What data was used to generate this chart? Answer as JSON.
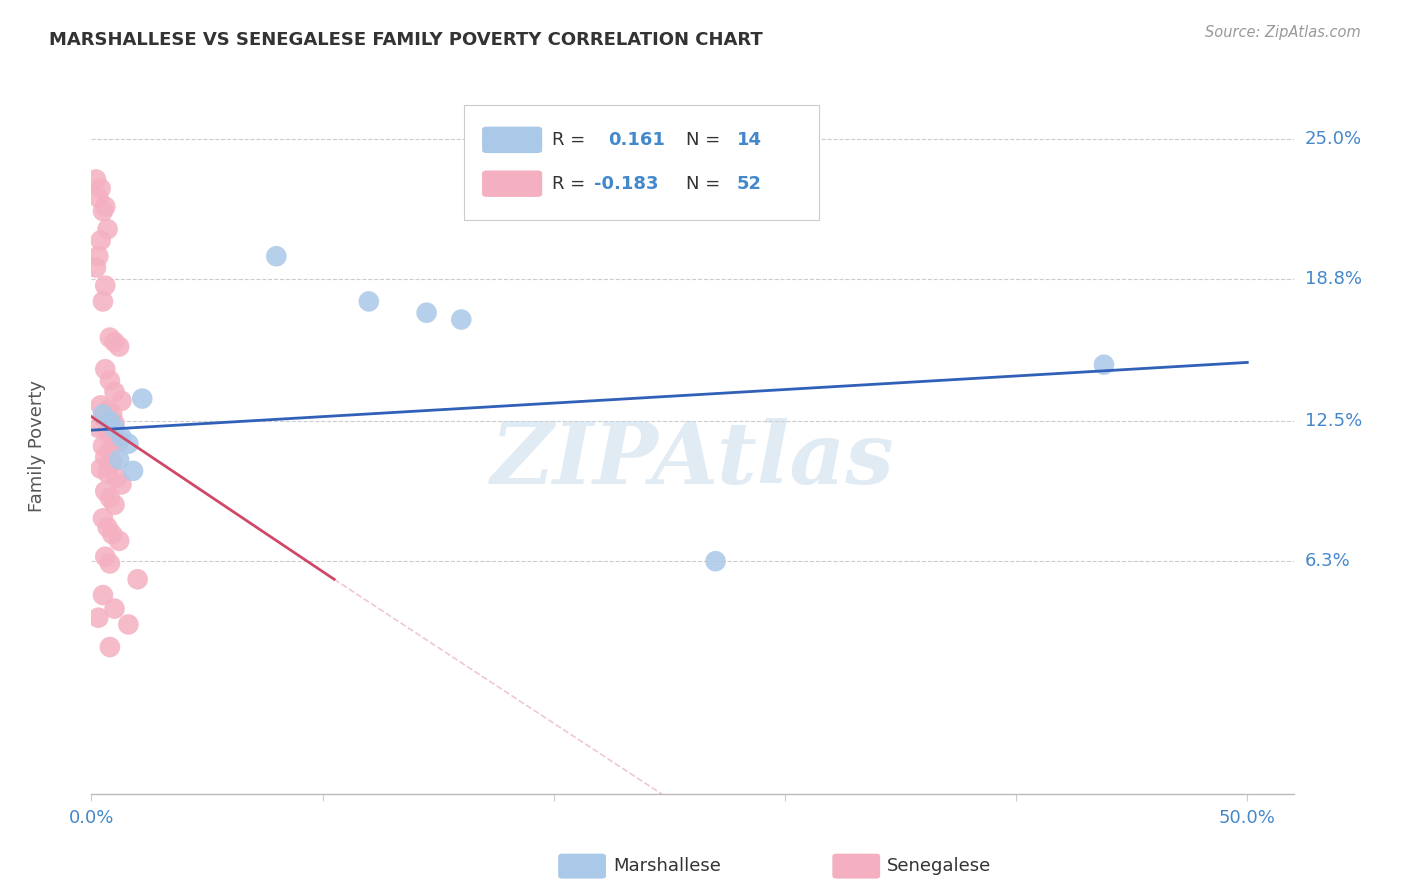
{
  "title": "MARSHALLESE VS SENEGALESE FAMILY POVERTY CORRELATION CHART",
  "source": "Source: ZipAtlas.com",
  "ylabel": "Family Poverty",
  "xlim": [
    0.0,
    0.52
  ],
  "ylim": [
    -0.04,
    0.268
  ],
  "watermark": "ZIPAtlas",
  "legend_blue_R": "R =  0.161",
  "legend_blue_N": "N = 14",
  "legend_pink_R": "R = -0.183",
  "legend_pink_N": "N = 52",
  "blue_color": "#aac8e8",
  "pink_color": "#f4b0c0",
  "blue_line_color": "#3060b8",
  "pink_line_color": "#d04868",
  "ytick_vals": [
    0.063,
    0.125,
    0.188,
    0.25
  ],
  "ytick_labels": [
    "6.3%",
    "12.5%",
    "18.8%",
    "25.0%"
  ],
  "blue_scatter": [
    [
      0.005,
      0.128
    ],
    [
      0.008,
      0.125
    ],
    [
      0.01,
      0.122
    ],
    [
      0.013,
      0.118
    ],
    [
      0.016,
      0.115
    ],
    [
      0.012,
      0.108
    ],
    [
      0.018,
      0.103
    ],
    [
      0.022,
      0.135
    ],
    [
      0.08,
      0.198
    ],
    [
      0.12,
      0.178
    ],
    [
      0.145,
      0.173
    ],
    [
      0.16,
      0.17
    ],
    [
      0.27,
      0.063
    ],
    [
      0.438,
      0.15
    ]
  ],
  "pink_scatter": [
    [
      0.002,
      0.232
    ],
    [
      0.004,
      0.228
    ],
    [
      0.003,
      0.224
    ],
    [
      0.006,
      0.22
    ],
    [
      0.005,
      0.218
    ],
    [
      0.007,
      0.21
    ],
    [
      0.004,
      0.205
    ],
    [
      0.003,
      0.198
    ],
    [
      0.002,
      0.193
    ],
    [
      0.006,
      0.185
    ],
    [
      0.005,
      0.178
    ],
    [
      0.008,
      0.162
    ],
    [
      0.01,
      0.16
    ],
    [
      0.012,
      0.158
    ],
    [
      0.006,
      0.148
    ],
    [
      0.008,
      0.143
    ],
    [
      0.01,
      0.138
    ],
    [
      0.013,
      0.134
    ],
    [
      0.004,
      0.132
    ],
    [
      0.007,
      0.13
    ],
    [
      0.009,
      0.128
    ],
    [
      0.005,
      0.127
    ],
    [
      0.006,
      0.126
    ],
    [
      0.008,
      0.125
    ],
    [
      0.01,
      0.124
    ],
    [
      0.003,
      0.122
    ],
    [
      0.007,
      0.12
    ],
    [
      0.009,
      0.118
    ],
    [
      0.012,
      0.116
    ],
    [
      0.005,
      0.114
    ],
    [
      0.008,
      0.112
    ],
    [
      0.006,
      0.109
    ],
    [
      0.009,
      0.107
    ],
    [
      0.004,
      0.104
    ],
    [
      0.007,
      0.102
    ],
    [
      0.011,
      0.1
    ],
    [
      0.013,
      0.097
    ],
    [
      0.006,
      0.094
    ],
    [
      0.008,
      0.091
    ],
    [
      0.01,
      0.088
    ],
    [
      0.005,
      0.082
    ],
    [
      0.007,
      0.078
    ],
    [
      0.009,
      0.075
    ],
    [
      0.012,
      0.072
    ],
    [
      0.006,
      0.065
    ],
    [
      0.008,
      0.062
    ],
    [
      0.02,
      0.055
    ],
    [
      0.005,
      0.048
    ],
    [
      0.01,
      0.042
    ],
    [
      0.003,
      0.038
    ],
    [
      0.016,
      0.035
    ],
    [
      0.008,
      0.025
    ]
  ],
  "blue_line": [
    [
      0.0,
      0.121
    ],
    [
      0.5,
      0.151
    ]
  ],
  "pink_line_solid": [
    [
      0.0,
      0.127
    ],
    [
      0.105,
      0.055
    ]
  ],
  "pink_line_dash": [
    [
      0.105,
      0.055
    ],
    [
      0.5,
      -0.21
    ]
  ]
}
